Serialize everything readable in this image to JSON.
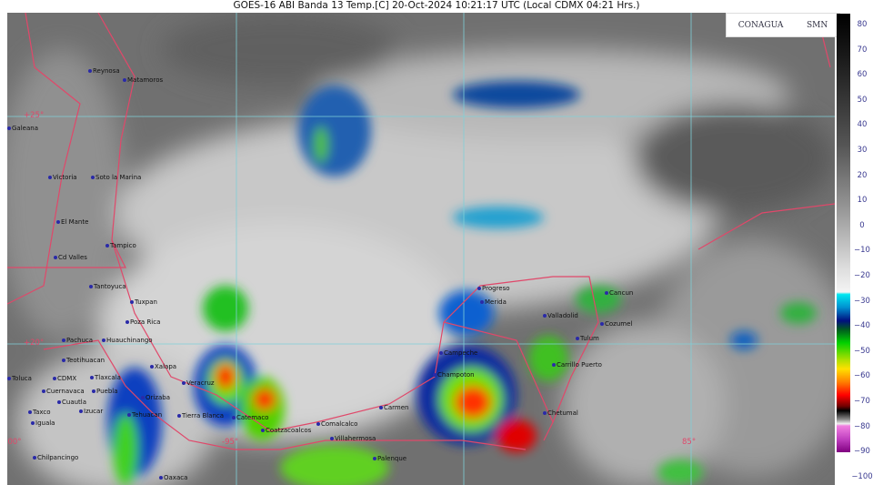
{
  "title": "GOES-16 ABI Banda 13 Temp.[C] 20-Oct-2024 10:21:17 UTC (Local CDMX  04:21 Hrs.)",
  "logos": {
    "conagua": "CONAGUA",
    "smn": "SMN"
  },
  "colorbar": {
    "unit": "°C",
    "ticks": [
      "80",
      "70",
      "60",
      "50",
      "40",
      "30",
      "20",
      "10",
      "0",
      "−10",
      "−20",
      "−30",
      "−40",
      "−50",
      "−60",
      "−70",
      "−80",
      "−90",
      "−100"
    ]
  },
  "coords": {
    "lat25": "+25°",
    "lat20": "+20°",
    "lon100": "-100°",
    "lon95": "-95°",
    "lon85": "85°"
  },
  "colors": {
    "border": "#e0486a",
    "grid": "#7fd0d8",
    "city_dot": "#2a2aa8"
  },
  "cities": [
    "Reynosa",
    "Matamoros",
    "Galeana",
    "Victoria",
    "Soto la Marina",
    "El Mante",
    "Tampico",
    "Cd Valles",
    "Tantoyuca",
    "Tuxpan",
    "Poza Rica",
    "Pachuca",
    "Huauchinango",
    "Teotihuacan",
    "Xalapa",
    "Toluca",
    "CDMX",
    "Tlaxcala",
    "Puebla",
    "Veracruz",
    "Cuernavaca",
    "Cuautla",
    "Orizaba",
    "Taxco",
    "Izucar",
    "Tehuacan",
    "Tierra Blanca",
    "Iguala",
    "Chilpancingo",
    "Oaxaca",
    "Catemaco",
    "Coatzacoalcos",
    "Comalcalco",
    "Villahermosa",
    "Carmen",
    "Palenque",
    "Campeche",
    "Champoton",
    "Progreso",
    "Merida",
    "Valladolid",
    "Cancun",
    "Cozumel",
    "Tulum",
    "Carrillo Puerto",
    "Chetumal"
  ]
}
